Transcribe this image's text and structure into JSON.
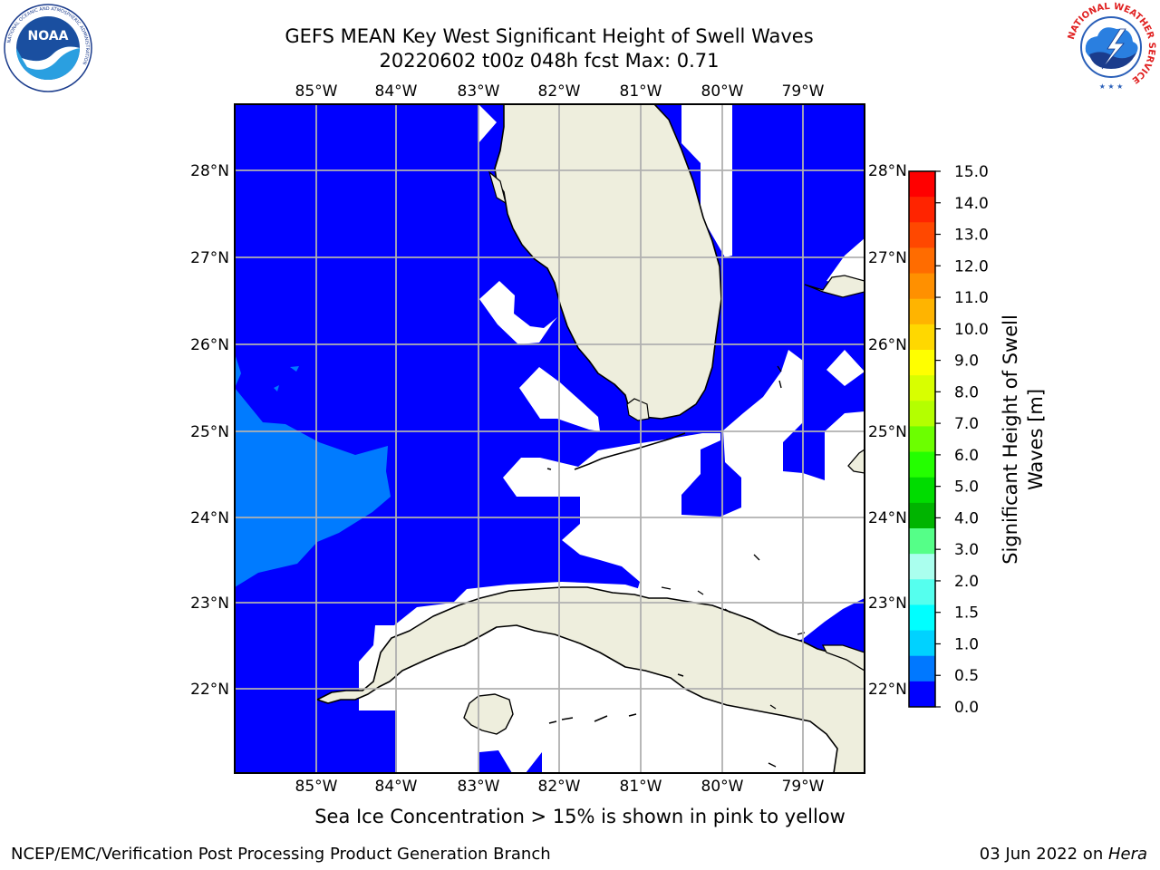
{
  "title": {
    "line1": "GEFS MEAN Key West Significant Height of Swell Waves",
    "line2": "20220602 t00z 048h fcst   Max: 0.71"
  },
  "map": {
    "lon_labels": [
      "85°W",
      "84°W",
      "83°W",
      "82°W",
      "81°W",
      "80°W",
      "79°W"
    ],
    "lat_labels": [
      "28°N",
      "27°N",
      "26°N",
      "25°N",
      "24°N",
      "23°N",
      "22°N"
    ],
    "colors": {
      "land": "#eeeedd",
      "ocean_0_0_5": "#0000ff",
      "ocean_0_5_1_0": "#007bff",
      "no_data": "#ffffff",
      "grid": "#b0b0b0"
    }
  },
  "colorbar": {
    "label_line1": "Significant Height of Swell",
    "label_line2": "Waves [m]",
    "ticks": [
      "15.0",
      "14.0",
      "13.0",
      "12.0",
      "11.0",
      "10.0",
      "9.0",
      "8.0",
      "7.0",
      "6.0",
      "5.0",
      "4.0",
      "3.0",
      "2.0",
      "1.5",
      "1.0",
      "0.5",
      "0.0"
    ],
    "colors": [
      "#ff0000",
      "#ff2400",
      "#ff4800",
      "#ff6c00",
      "#ff9000",
      "#ffb400",
      "#ffd800",
      "#ffff00",
      "#d8ff00",
      "#b4ff00",
      "#6cff00",
      "#24ff00",
      "#00dc00",
      "#00b400",
      "#55ff88",
      "#aaffee",
      "#55ffee",
      "#00ffff",
      "#00d2ff",
      "#0078ff",
      "#0000ff"
    ]
  },
  "caption": "Sea Ice Concentration > 15% is shown in pink to yellow",
  "footer": {
    "left": "NCEP/EMC/Verification Post Processing Product Generation Branch",
    "date": "03 Jun 2022 on ",
    "host": "Hera"
  },
  "logos": {
    "left": "NOAA",
    "right_text": "NATIONAL WEATHER SERVICE"
  }
}
